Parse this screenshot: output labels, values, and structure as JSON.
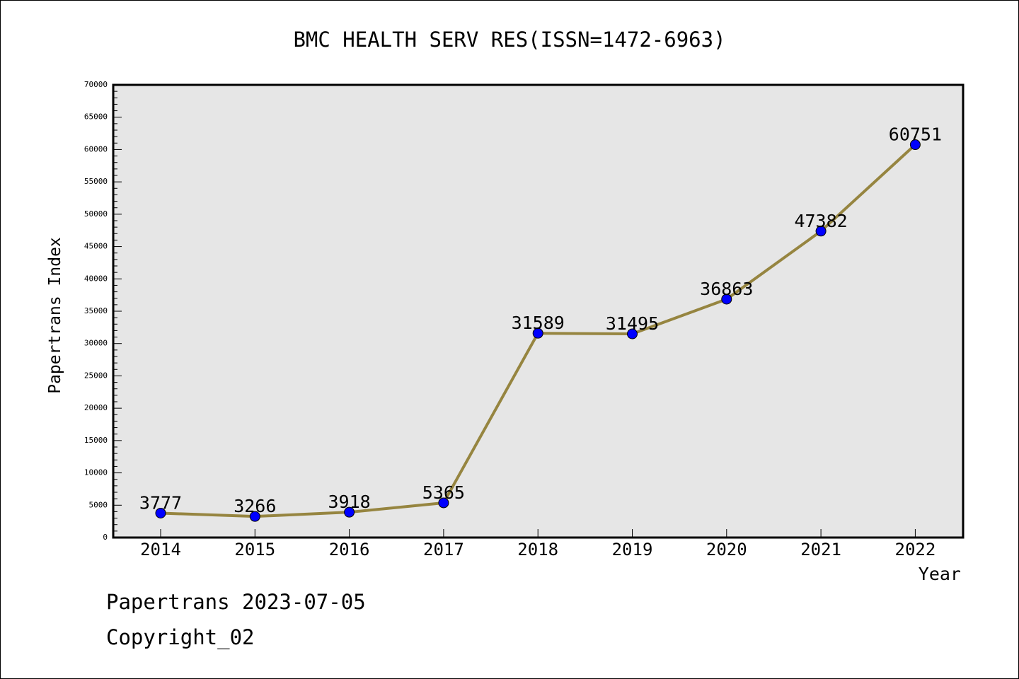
{
  "chart_data": {
    "type": "line",
    "title": "BMC HEALTH SERV RES(ISSN=1472-6963)",
    "xlabel": "Year",
    "ylabel": "Papertrans Index",
    "categories": [
      "2014",
      "2015",
      "2016",
      "2017",
      "2018",
      "2019",
      "2020",
      "2021",
      "2022"
    ],
    "series": [
      {
        "values": [
          3777,
          3266,
          3918,
          5365,
          31589,
          31495,
          36863,
          47382,
          60751
        ]
      }
    ],
    "data_labels": [
      "3777",
      "3266",
      "3918",
      "5365",
      "31589",
      "31495",
      "36863",
      "47382",
      "60751"
    ],
    "ylim": [
      0,
      70000
    ],
    "yticks": [
      "0",
      "5000",
      "10000",
      "15000",
      "20000",
      "25000",
      "30000",
      "35000",
      "40000",
      "45000",
      "50000",
      "55000",
      "60000",
      "65000",
      "70000"
    ],
    "grid": false,
    "legend": "none",
    "colors": {
      "line": "#968540",
      "marker": "#0000ff",
      "plot_background": "#e6e6e6"
    }
  },
  "footer": {
    "date_line": "Papertrans 2023-07-05",
    "copyright_line": "Copyright_02"
  }
}
